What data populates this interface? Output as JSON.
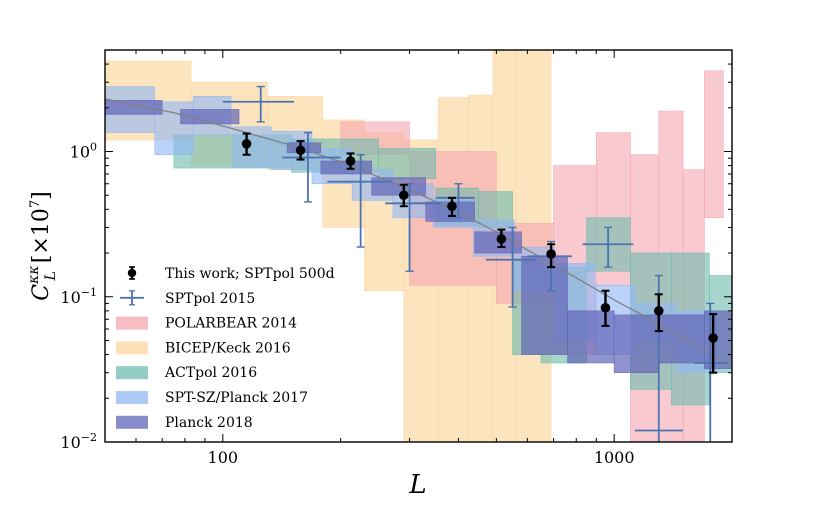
{
  "chart_data": {
    "type": "scatter",
    "title": "",
    "xlabel": "L",
    "ylabel_main": "C",
    "ylabel_super": "κκ",
    "ylabel_sub": "L",
    "ylabel_units": "[×10",
    "ylabel_units_exp": "7",
    "ylabel_units_close": "]",
    "xscale": "log",
    "yscale": "log",
    "xlim": [
      50,
      2000
    ],
    "ylim": [
      0.01,
      5.0
    ],
    "xticks": [
      {
        "value": 100,
        "label": "100"
      },
      {
        "value": 1000,
        "label": "1000"
      }
    ],
    "yticks": [
      {
        "value": 0.01,
        "base": "10",
        "exp": "−2"
      },
      {
        "value": 0.1,
        "base": "10",
        "exp": "−1"
      },
      {
        "value": 1.0,
        "base": "10",
        "exp": "0"
      }
    ],
    "theory_curve": {
      "color": "#808080",
      "points": [
        [
          50,
          2.3
        ],
        [
          75,
          1.85
        ],
        [
          100,
          1.5
        ],
        [
          150,
          1.1
        ],
        [
          200,
          0.85
        ],
        [
          300,
          0.55
        ],
        [
          400,
          0.38
        ],
        [
          500,
          0.28
        ],
        [
          600,
          0.21
        ],
        [
          800,
          0.135
        ],
        [
          1000,
          0.095
        ],
        [
          1300,
          0.065
        ],
        [
          1600,
          0.047
        ],
        [
          2000,
          0.033
        ]
      ]
    },
    "legend": {
      "position": "lower-left",
      "entries": [
        {
          "label": "This work; SPTpol 500d",
          "kind": "point",
          "color": "#000000"
        },
        {
          "label": "SPTpol 2015",
          "kind": "cross",
          "color": "#4c72b0"
        },
        {
          "label": "POLARBEAR 2014",
          "kind": "box",
          "color": "#f4a7b0"
        },
        {
          "label": "BICEP/Keck 2016",
          "kind": "box",
          "color": "#fbd7a0"
        },
        {
          "label": "ACTpol 2016",
          "kind": "box",
          "color": "#6dbbae"
        },
        {
          "label": "SPT-SZ/Planck 2017",
          "kind": "box",
          "color": "#92b8f4"
        },
        {
          "label": "Planck 2018",
          "kind": "box",
          "color": "#6265b8"
        }
      ]
    },
    "series": [
      {
        "name": "BICEP/Keck 2016",
        "kind": "boxes",
        "color": "#fbd7a0",
        "opacity": 0.68,
        "boxes": [
          {
            "x0": 50,
            "x1": 83,
            "y0": 1.2,
            "y1": 4.2
          },
          {
            "x0": 83,
            "x1": 130,
            "y0": 0.8,
            "y1": 3.0
          },
          {
            "x0": 130,
            "x1": 180,
            "y0": 0.75,
            "y1": 2.4
          },
          {
            "x0": 180,
            "x1": 230,
            "y0": 0.3,
            "y1": 1.65
          },
          {
            "x0": 230,
            "x1": 290,
            "y0": 0.11,
            "y1": 1.35
          },
          {
            "x0": 290,
            "x1": 355,
            "y0": 0.01,
            "y1": 1.2
          },
          {
            "x0": 355,
            "x1": 425,
            "y0": 0.01,
            "y1": 2.35
          },
          {
            "x0": 425,
            "x1": 490,
            "y0": 0.01,
            "y1": 2.45
          },
          {
            "x0": 490,
            "x1": 560,
            "y0": 0.01,
            "y1": 5.0
          },
          {
            "x0": 560,
            "x1": 690,
            "y0": 0.01,
            "y1": 5.0
          }
        ]
      },
      {
        "name": "POLARBEAR 2014",
        "kind": "boxes",
        "color": "#f4a7b0",
        "opacity": 0.6,
        "boxes": [
          {
            "x0": 200,
            "x1": 300,
            "y0": 0.95,
            "y1": 1.6
          },
          {
            "x0": 300,
            "x1": 500,
            "y0": 0.12,
            "y1": 1.0
          },
          {
            "x0": 500,
            "x1": 700,
            "y0": 0.09,
            "y1": 0.32
          },
          {
            "x0": 700,
            "x1": 900,
            "y0": 0.04,
            "y1": 0.8
          },
          {
            "x0": 900,
            "x1": 1100,
            "y0": 0.12,
            "y1": 1.35
          },
          {
            "x0": 1100,
            "x1": 1300,
            "y0": 0.01,
            "y1": 0.95
          },
          {
            "x0": 1300,
            "x1": 1500,
            "y0": 0.01,
            "y1": 1.9
          },
          {
            "x0": 1500,
            "x1": 1700,
            "y0": 0.01,
            "y1": 0.75
          },
          {
            "x0": 1700,
            "x1": 1900,
            "y0": 0.35,
            "y1": 3.6
          }
        ]
      },
      {
        "name": "ACTpol 2016",
        "kind": "boxes",
        "color": "#6dbbae",
        "opacity": 0.6,
        "boxes": [
          {
            "x0": 75,
            "x1": 150,
            "y0": 0.77,
            "y1": 1.3
          },
          {
            "x0": 150,
            "x1": 250,
            "y0": 0.72,
            "y1": 1.22
          },
          {
            "x0": 250,
            "x1": 350,
            "y0": 0.65,
            "y1": 1.05
          },
          {
            "x0": 350,
            "x1": 450,
            "y0": 0.31,
            "y1": 0.56
          },
          {
            "x0": 450,
            "x1": 550,
            "y0": 0.3,
            "y1": 0.53
          },
          {
            "x0": 550,
            "x1": 650,
            "y0": 0.04,
            "y1": 0.18
          },
          {
            "x0": 650,
            "x1": 850,
            "y0": 0.035,
            "y1": 0.16
          },
          {
            "x0": 850,
            "x1": 1100,
            "y0": 0.15,
            "y1": 0.35
          },
          {
            "x0": 1100,
            "x1": 1400,
            "y0": 0.023,
            "y1": 0.2
          },
          {
            "x0": 1400,
            "x1": 1750,
            "y0": 0.018,
            "y1": 0.2
          },
          {
            "x0": 1750,
            "x1": 2000,
            "y0": 0.03,
            "y1": 0.14
          }
        ]
      },
      {
        "name": "SPT-SZ/Planck 2017",
        "kind": "boxes",
        "color": "#92b8f4",
        "opacity": 0.62,
        "boxes": [
          {
            "x0": 50,
            "x1": 67,
            "y0": 1.35,
            "y1": 2.8
          },
          {
            "x0": 67,
            "x1": 84,
            "y0": 0.95,
            "y1": 2.2
          },
          {
            "x0": 84,
            "x1": 105,
            "y0": 1.3,
            "y1": 2.4
          },
          {
            "x0": 106,
            "x1": 133,
            "y0": 0.78,
            "y1": 1.48
          },
          {
            "x0": 133,
            "x1": 169,
            "y0": 0.75,
            "y1": 1.38
          },
          {
            "x0": 169,
            "x1": 214,
            "y0": 0.6,
            "y1": 1.05
          },
          {
            "x0": 214,
            "x1": 272,
            "y0": 0.46,
            "y1": 0.75
          },
          {
            "x0": 272,
            "x1": 345,
            "y0": 0.35,
            "y1": 0.6
          },
          {
            "x0": 345,
            "x1": 437,
            "y0": 0.3,
            "y1": 0.48
          },
          {
            "x0": 437,
            "x1": 555,
            "y0": 0.19,
            "y1": 0.34
          },
          {
            "x0": 555,
            "x1": 704,
            "y0": 0.11,
            "y1": 0.22
          },
          {
            "x0": 704,
            "x1": 893,
            "y0": 0.05,
            "y1": 0.17
          },
          {
            "x0": 893,
            "x1": 1132,
            "y0": 0.04,
            "y1": 0.12
          },
          {
            "x0": 1132,
            "x1": 1436,
            "y0": 0.05,
            "y1": 0.09
          },
          {
            "x0": 1436,
            "x1": 1822,
            "y0": 0.03,
            "y1": 0.08
          }
        ]
      },
      {
        "name": "Planck 2018",
        "kind": "boxes",
        "color": "#6265b8",
        "opacity": 0.7,
        "boxes": [
          {
            "x0": 50,
            "x1": 70,
            "y0": 1.8,
            "y1": 2.25
          },
          {
            "x0": 78,
            "x1": 110,
            "y0": 1.55,
            "y1": 1.95
          },
          {
            "x0": 146,
            "x1": 178,
            "y0": 0.98,
            "y1": 1.15
          },
          {
            "x0": 178,
            "x1": 240,
            "y0": 0.7,
            "y1": 0.86
          },
          {
            "x0": 240,
            "x1": 330,
            "y0": 0.5,
            "y1": 0.66
          },
          {
            "x0": 330,
            "x1": 440,
            "y0": 0.33,
            "y1": 0.45
          },
          {
            "x0": 440,
            "x1": 580,
            "y0": 0.2,
            "y1": 0.28
          },
          {
            "x0": 580,
            "x1": 760,
            "y0": 0.04,
            "y1": 0.19
          },
          {
            "x0": 760,
            "x1": 1000,
            "y0": 0.035,
            "y1": 0.08
          },
          {
            "x0": 1000,
            "x1": 1300,
            "y0": 0.03,
            "y1": 0.075
          },
          {
            "x0": 1300,
            "x1": 1700,
            "y0": 0.035,
            "y1": 0.075
          },
          {
            "x0": 1700,
            "x1": 2000,
            "y0": 0.032,
            "y1": 0.08
          }
        ]
      },
      {
        "name": "SPTpol 2015",
        "kind": "crosses",
        "color": "#4c72b0",
        "points": [
          {
            "x": 125,
            "y": 2.2,
            "xlo": 100,
            "xhi": 152,
            "ylo": 1.6,
            "yhi": 2.8
          },
          {
            "x": 165,
            "y": 0.91,
            "xlo": 142,
            "xhi": 200,
            "ylo": 0.45,
            "yhi": 1.35
          },
          {
            "x": 225,
            "y": 0.62,
            "xlo": 185,
            "xhi": 270,
            "ylo": 0.22,
            "yhi": 0.95
          },
          {
            "x": 300,
            "y": 0.44,
            "xlo": 260,
            "xhi": 360,
            "ylo": 0.15,
            "yhi": 0.6
          },
          {
            "x": 400,
            "y": 0.48,
            "xlo": 350,
            "xhi": 440,
            "ylo": 0.35,
            "yhi": 0.6
          },
          {
            "x": 550,
            "y": 0.18,
            "xlo": 470,
            "xhi": 630,
            "ylo": 0.085,
            "yhi": 0.3
          },
          {
            "x": 690,
            "y": 0.19,
            "xlo": 600,
            "xhi": 780,
            "ylo": 0.11,
            "yhi": 0.24
          },
          {
            "x": 965,
            "y": 0.23,
            "xlo": 830,
            "xhi": 1120,
            "ylo": 0.16,
            "yhi": 0.3
          },
          {
            "x": 1300,
            "y": 0.012,
            "xlo": 1130,
            "xhi": 1500,
            "ylo": 0.01,
            "yhi": 0.14
          },
          {
            "x": 1760,
            "y": 0.035,
            "xlo": 1600,
            "xhi": 1950,
            "ylo": 0.01,
            "yhi": 0.09
          }
        ]
      },
      {
        "name": "This work; SPTpol 500d",
        "kind": "points",
        "color": "#000000",
        "points": [
          {
            "x": 115,
            "y": 1.13,
            "ylo": 0.95,
            "yhi": 1.33
          },
          {
            "x": 158,
            "y": 1.02,
            "ylo": 0.88,
            "yhi": 1.18
          },
          {
            "x": 212,
            "y": 0.86,
            "ylo": 0.76,
            "yhi": 0.97
          },
          {
            "x": 290,
            "y": 0.5,
            "ylo": 0.42,
            "yhi": 0.59
          },
          {
            "x": 385,
            "y": 0.42,
            "ylo": 0.36,
            "yhi": 0.48
          },
          {
            "x": 515,
            "y": 0.25,
            "ylo": 0.22,
            "yhi": 0.29
          },
          {
            "x": 690,
            "y": 0.197,
            "ylo": 0.16,
            "yhi": 0.23
          },
          {
            "x": 950,
            "y": 0.084,
            "ylo": 0.063,
            "yhi": 0.11
          },
          {
            "x": 1300,
            "y": 0.08,
            "ylo": 0.058,
            "yhi": 0.104
          },
          {
            "x": 1790,
            "y": 0.052,
            "ylo": 0.03,
            "yhi": 0.076
          }
        ]
      }
    ]
  }
}
